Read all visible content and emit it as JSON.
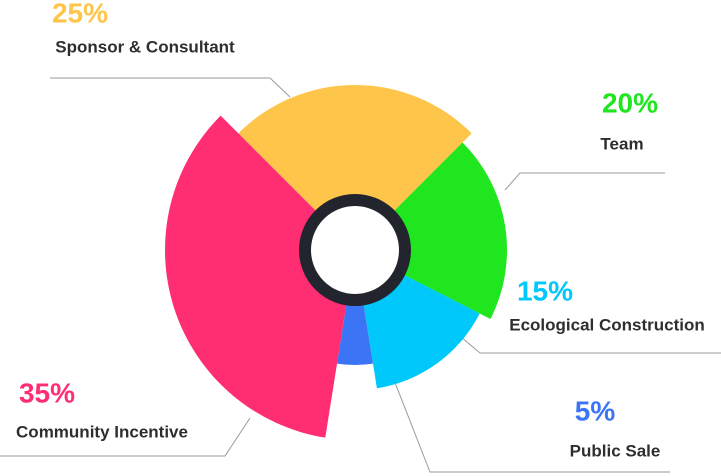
{
  "chart_data": {
    "type": "pie",
    "categories": [
      "Sponsor & Consultant",
      "Team",
      "Ecological Construction",
      "Public Sale",
      "Community Incentive"
    ],
    "values": [
      25,
      20,
      15,
      5,
      35
    ],
    "value_labels": [
      "25%",
      "20%",
      "15%",
      "5%",
      "35%"
    ],
    "colors": [
      "#fec54b",
      "#1fe61f",
      "#00c8fa",
      "#3b74f5",
      "#ff2d71"
    ]
  }
}
